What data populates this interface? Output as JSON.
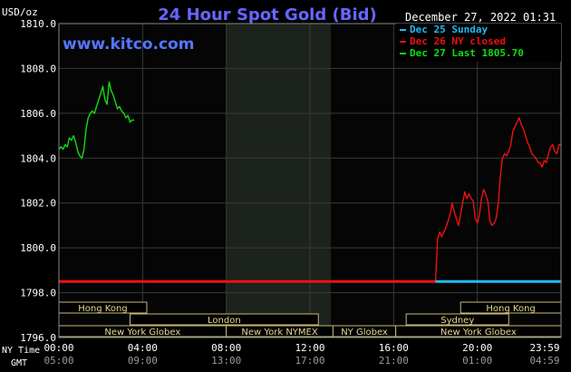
{
  "chart_data": {
    "type": "line",
    "title": "24 Hour Spot Gold (Bid)",
    "website": "www.kitco.com",
    "timestamp": "December 27, 2022 01:31",
    "unit_label": "USD/oz",
    "row_labels": {
      "ny": "NY Time",
      "gmt": "GMT"
    },
    "ylim": [
      1796.0,
      1810.0
    ],
    "y_ticks": [
      "1810.0",
      "1808.0",
      "1806.0",
      "1804.0",
      "1802.0",
      "1800.0",
      "1798.0",
      "1796.0"
    ],
    "xlim": [
      0,
      24
    ],
    "x_ticks_ny": [
      "00:00",
      "04:00",
      "08:00",
      "12:00",
      "16:00",
      "20:00",
      "23:59"
    ],
    "x_ticks_gmt": [
      "05:00",
      "09:00",
      "13:00",
      "17:00",
      "21:00",
      "01:00",
      "04:59"
    ],
    "legend": [
      {
        "label": "Dec 25 Sunday",
        "color": "#22bbee"
      },
      {
        "label": "Dec 26 NY closed",
        "color": "#ee1111"
      },
      {
        "label": "Dec 27 Last 1805.70",
        "color": "#11dd11"
      }
    ],
    "shaded_range_hours": [
      8.0,
      13.0
    ],
    "series": [
      {
        "name": "Dec 27 Last 1805.70",
        "color": "#11dd11",
        "x": [
          0.0,
          0.1,
          0.2,
          0.3,
          0.4,
          0.5,
          0.6,
          0.7,
          0.8,
          0.9,
          1.0,
          1.1,
          1.2,
          1.3,
          1.4,
          1.5,
          1.6,
          1.7,
          1.8,
          1.9,
          2.0,
          2.1,
          2.2,
          2.3,
          2.4,
          2.5,
          2.6,
          2.7,
          2.8,
          2.9,
          3.0,
          3.1,
          3.2,
          3.3,
          3.4,
          3.5,
          3.6
        ],
        "y": [
          1804.4,
          1804.5,
          1804.4,
          1804.6,
          1804.5,
          1804.9,
          1804.8,
          1805.0,
          1804.7,
          1804.3,
          1804.1,
          1804.0,
          1804.4,
          1805.3,
          1805.8,
          1806.0,
          1806.1,
          1806.0,
          1806.3,
          1806.6,
          1806.9,
          1807.2,
          1806.6,
          1806.4,
          1807.4,
          1807.0,
          1806.8,
          1806.5,
          1806.2,
          1806.3,
          1806.1,
          1806.0,
          1805.8,
          1805.9,
          1805.6,
          1805.7,
          1805.7
        ]
      },
      {
        "name": "Dec 26 NY closed",
        "color": "#ee1111",
        "x": [
          0.0,
          18.0,
          18.05,
          18.1,
          18.2,
          18.3,
          18.4,
          18.5,
          18.6,
          18.7,
          18.8,
          18.9,
          19.0,
          19.1,
          19.2,
          19.3,
          19.4,
          19.5,
          19.6,
          19.7,
          19.8,
          19.9,
          20.0,
          20.1,
          20.2,
          20.3,
          20.4,
          20.5,
          20.6,
          20.7,
          20.8,
          20.9,
          21.0,
          21.1,
          21.2,
          21.3,
          21.4,
          21.5,
          21.6,
          21.7,
          21.8,
          21.9,
          22.0,
          22.1,
          22.2,
          22.3,
          22.4,
          22.5,
          22.6,
          22.7,
          22.8,
          22.9,
          23.0,
          23.1,
          23.2,
          23.3,
          23.4,
          23.5,
          23.6,
          23.7,
          23.8,
          23.9,
          24.0
        ],
        "y": [
          1798.5,
          1798.5,
          1799.5,
          1800.4,
          1800.7,
          1800.5,
          1800.7,
          1800.9,
          1801.2,
          1801.5,
          1802.0,
          1801.6,
          1801.3,
          1801.0,
          1801.5,
          1802.0,
          1802.5,
          1802.2,
          1802.4,
          1802.2,
          1802.1,
          1801.3,
          1801.1,
          1801.5,
          1802.2,
          1802.6,
          1802.4,
          1802.1,
          1801.2,
          1801.0,
          1801.1,
          1801.3,
          1802.0,
          1803.2,
          1804.0,
          1804.2,
          1804.1,
          1804.3,
          1804.6,
          1805.2,
          1805.4,
          1805.6,
          1805.8,
          1805.5,
          1805.3,
          1805.0,
          1804.7,
          1804.5,
          1804.2,
          1804.1,
          1804.0,
          1803.8,
          1803.8,
          1803.6,
          1803.9,
          1803.8,
          1804.2,
          1804.5,
          1804.6,
          1804.3,
          1804.2,
          1804.6,
          1804.6
        ]
      },
      {
        "name": "Dec 25 Sunday",
        "color": "#22bbee",
        "x": [
          18.0,
          24.0
        ],
        "y": [
          1798.5,
          1798.5
        ]
      }
    ],
    "market_sessions": [
      {
        "label": "Hong Kong",
        "start": 0.0,
        "end": 4.2,
        "row": 0
      },
      {
        "label": "Hong Kong",
        "start": 19.2,
        "end": 24.0,
        "row": 0
      },
      {
        "label": "London",
        "start": 3.4,
        "end": 12.4,
        "row": 1
      },
      {
        "label": "Sydney",
        "start": 16.6,
        "end": 21.5,
        "row": 1
      },
      {
        "label": "New York Globex",
        "start": 0.0,
        "end": 8.0,
        "row": 2
      },
      {
        "label": "New York NYMEX",
        "start": 8.0,
        "end": 13.1,
        "row": 2
      },
      {
        "label": "NY Globex",
        "start": 13.1,
        "end": 16.1,
        "row": 2
      },
      {
        "label": "New York Globex",
        "start": 16.1,
        "end": 24.0,
        "row": 2
      }
    ]
  }
}
